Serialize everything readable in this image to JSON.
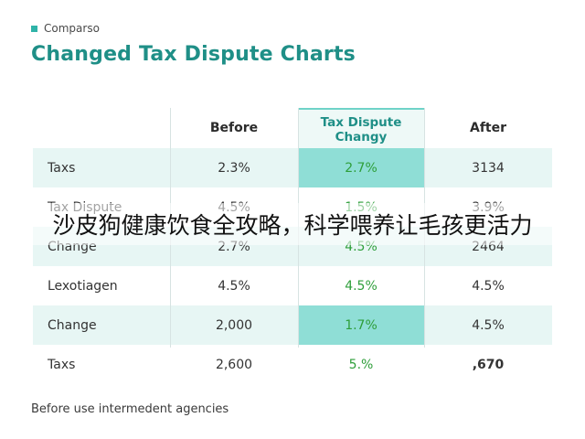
{
  "brand": {
    "icon": "square-icon",
    "label": "Comparso"
  },
  "title": "Changed Tax Dispute Charts",
  "table": {
    "headers": [
      "",
      "Before",
      "Tax Dispute\nChangy",
      "After"
    ],
    "rows": [
      {
        "label": "Taxs",
        "before": "2.3%",
        "change": "2.7%",
        "after": "3134",
        "shaded": true,
        "highlight": true
      },
      {
        "label": "Tax Dispute",
        "before": "4.5%",
        "change": "1.5%",
        "after": "3.9%",
        "shaded": false,
        "highlight": false
      },
      {
        "label": "Change",
        "before": "2.7%",
        "change": "4.5%",
        "after": "2464",
        "shaded": true,
        "highlight": false
      },
      {
        "label": "Lexotiagen",
        "before": "4.5%",
        "change": "4.5%",
        "after": "4.5%",
        "shaded": false,
        "highlight": false
      },
      {
        "label": "Change",
        "before": "2,000",
        "change": "1.7%",
        "after": "4.5%",
        "shaded": true,
        "highlight": true
      },
      {
        "label": "Taxs",
        "before": "2,600",
        "change": "5.%",
        "after": ",670",
        "shaded": false,
        "highlight": false
      }
    ]
  },
  "footer": "Before use intermedent agencies",
  "overlay_text": "沙皮狗健康饮食全攻略，科学喂养让毛孩更活力",
  "colors": {
    "accent": "#1f8f87",
    "highlight": "#8fded6",
    "shade": "#e7f6f4",
    "green_text": "#2e9e3a"
  }
}
